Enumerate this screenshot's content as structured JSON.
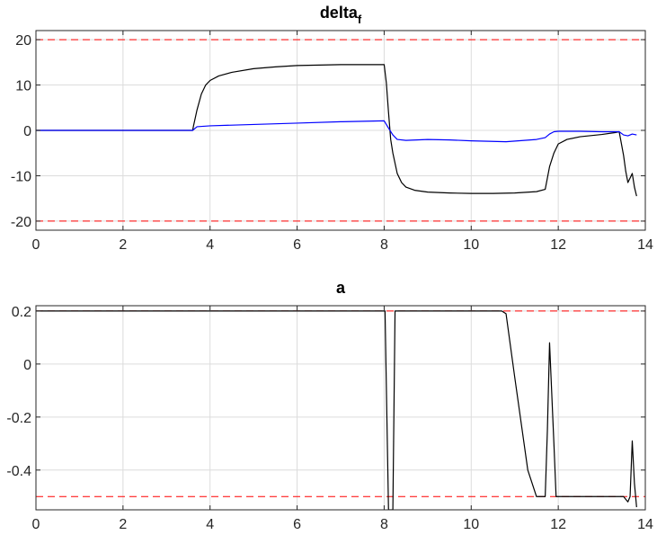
{
  "chart_data": [
    {
      "type": "line",
      "title": "delta",
      "title_subscript": "f",
      "xlim": [
        0,
        14
      ],
      "ylim": [
        -22,
        22
      ],
      "xticks": [
        0,
        2,
        4,
        6,
        8,
        10,
        12,
        14
      ],
      "yticks": [
        -20,
        -10,
        0,
        10,
        20
      ],
      "grid": true,
      "bounds": [
        {
          "y": 20,
          "color": "#ff0000"
        },
        {
          "y": -20,
          "color": "#ff0000"
        }
      ],
      "series": [
        {
          "color": "#000000",
          "x": [
            0,
            3.6,
            3.62,
            3.7,
            3.8,
            3.9,
            4.0,
            4.2,
            4.5,
            5.0,
            5.5,
            6.0,
            6.5,
            7.0,
            7.5,
            8.0,
            8.05,
            8.1,
            8.15,
            8.2,
            8.3,
            8.4,
            8.5,
            8.7,
            9.0,
            9.5,
            10.0,
            10.5,
            11.0,
            11.5,
            11.7,
            11.8,
            11.9,
            12.0,
            12.2,
            12.5,
            13.0,
            13.3,
            13.4,
            13.5,
            13.55,
            13.6,
            13.65,
            13.7,
            13.75,
            13.8
          ],
          "y": [
            0,
            0,
            1,
            4.5,
            8.0,
            10.0,
            11.0,
            12.0,
            12.8,
            13.6,
            14.0,
            14.3,
            14.4,
            14.5,
            14.5,
            14.5,
            10.5,
            4.0,
            -2.0,
            -5.0,
            -9.5,
            -11.5,
            -12.5,
            -13.2,
            -13.6,
            -13.8,
            -13.9,
            -13.9,
            -13.8,
            -13.5,
            -13.0,
            -8.0,
            -5.0,
            -3.0,
            -2.0,
            -1.4,
            -0.9,
            -0.5,
            -0.3,
            -5.5,
            -9.0,
            -11.5,
            -10.5,
            -9.5,
            -12.5,
            -14.5
          ]
        },
        {
          "color": "#0000ff",
          "x": [
            0,
            3.6,
            3.7,
            4.0,
            5.0,
            6.0,
            7.0,
            8.0,
            8.1,
            8.2,
            8.3,
            8.5,
            9.0,
            9.5,
            10.0,
            10.8,
            11.5,
            11.7,
            11.8,
            11.9,
            12.0,
            12.5,
            13.0,
            13.4,
            13.5,
            13.6,
            13.7,
            13.8
          ],
          "y": [
            0,
            0,
            0.8,
            1.0,
            1.3,
            1.6,
            1.9,
            2.1,
            0.5,
            -1.0,
            -2.0,
            -2.2,
            -2.0,
            -2.1,
            -2.3,
            -2.5,
            -2.0,
            -1.6,
            -0.8,
            -0.3,
            -0.2,
            -0.2,
            -0.3,
            -0.3,
            -1.0,
            -1.2,
            -0.8,
            -1.0
          ]
        }
      ]
    },
    {
      "type": "line",
      "title": "a",
      "xlim": [
        0,
        14
      ],
      "ylim": [
        -0.55,
        0.22
      ],
      "xticks": [
        0,
        2,
        4,
        6,
        8,
        10,
        12,
        14
      ],
      "yticks": [
        -0.4,
        -0.2,
        0,
        0.2
      ],
      "ytick_labels": [
        "-0.4",
        "-0.2",
        "0",
        "0.2"
      ],
      "grid": true,
      "bounds": [
        {
          "y": 0.2,
          "color": "#ff0000"
        },
        {
          "y": -0.5,
          "color": "#ff0000"
        }
      ],
      "series": [
        {
          "color": "#000000",
          "x": [
            0,
            8.0,
            8.02,
            8.1,
            8.15,
            8.2,
            8.25,
            8.28,
            8.3,
            10.7,
            10.8,
            11.0,
            11.3,
            11.5,
            11.6,
            11.7,
            11.75,
            11.8,
            11.9,
            11.95,
            12.0,
            12.5,
            13.0,
            13.5,
            13.55,
            13.6,
            13.65,
            13.7,
            13.75,
            13.8
          ],
          "y": [
            0.2,
            0.2,
            0.2,
            -0.55,
            -0.55,
            -0.55,
            0.2,
            0.2,
            0.2,
            0.2,
            0.19,
            -0.05,
            -0.4,
            -0.5,
            -0.5,
            -0.5,
            -0.25,
            0.08,
            -0.3,
            -0.5,
            -0.5,
            -0.5,
            -0.5,
            -0.5,
            -0.51,
            -0.52,
            -0.5,
            -0.29,
            -0.45,
            -0.54
          ]
        }
      ]
    }
  ]
}
